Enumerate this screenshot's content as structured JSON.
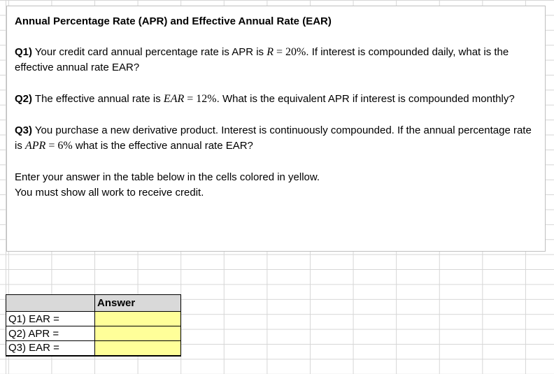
{
  "colors": {
    "answer_yellow": "#FFFF99",
    "header_gray": "#D9D9D9",
    "gridline": "#D6D6D6",
    "box_border": "#BFBFBF"
  },
  "instructions": {
    "title": "Annual Percentage Rate (APR) and Effective Annual Rate (EAR)",
    "q1": {
      "label": "Q1)",
      "pre": " Your credit card annual percentage rate is APR is ",
      "math_var": "R",
      "math_rest": " = 20%",
      "post": ". If interest is compounded daily, what is the effective annual rate EAR?"
    },
    "q2": {
      "label": "Q2)",
      "pre": " The effective annual rate is ",
      "math_var": "EAR",
      "math_rest": " = 12%",
      "post": ". What is the equivalent APR if interest is compounded monthly?"
    },
    "q3": {
      "label": "Q3)",
      "pre": " You purchase a new derivative product. Interest is continuously compounded. If the annual percentage rate is ",
      "math_var": "APR",
      "math_rest": " = 6%",
      "post": " what is the effective annual rate EAR?"
    },
    "note_line1": "Enter your answer in the table below in the cells colored in yellow.",
    "note_line2": "You must show all work to receive credit."
  },
  "answer_table": {
    "header": {
      "blank": "",
      "answer": "Answer"
    },
    "rows": [
      {
        "label": "Q1) EAR =",
        "value": ""
      },
      {
        "label": "Q2) APR =",
        "value": ""
      },
      {
        "label": "Q3) EAR =",
        "value": ""
      }
    ]
  }
}
